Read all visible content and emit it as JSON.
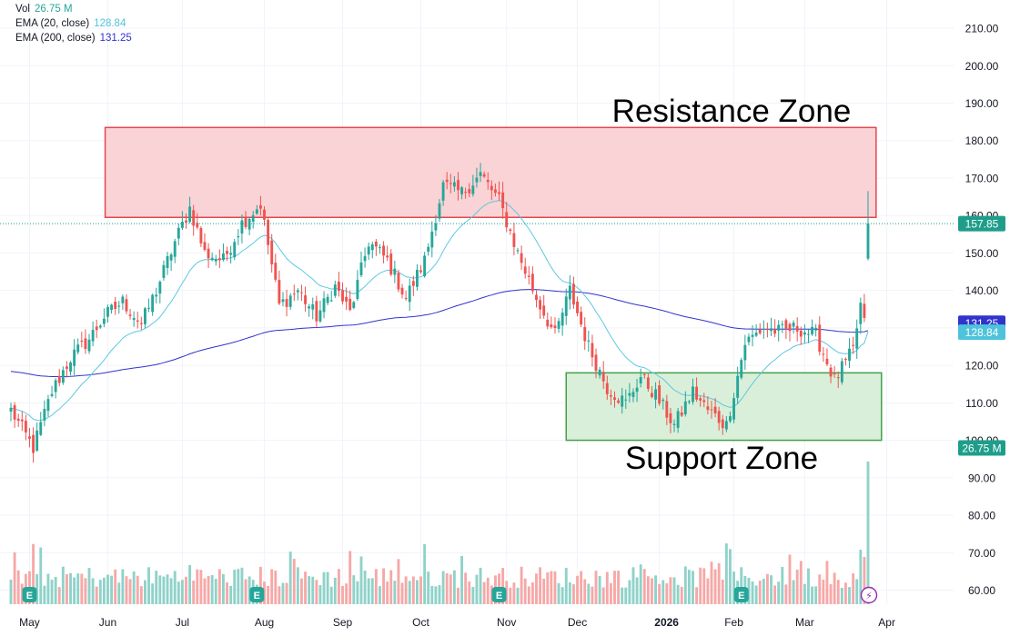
{
  "legend": {
    "vol_label": "Vol",
    "vol_value": "26.75 M",
    "ema20_label": "EMA (20, close)",
    "ema20_value": "128.84",
    "ema200_label": "EMA (200, close)",
    "ema200_value": "131.25"
  },
  "colors": {
    "up": "#26a69a",
    "down": "#ef5350",
    "ema20": "#5ec8e0",
    "ema200": "#3033cc",
    "resistance_fill": "#f9d3d6",
    "resistance_stroke": "#e5484d",
    "support_fill": "#d9efd9",
    "support_stroke": "#43a047",
    "current_price": "#1e9e8a"
  },
  "chart_data": {
    "type": "candlestick",
    "title": "",
    "y_axis": {
      "ticks": [
        210,
        200,
        190,
        180,
        170,
        160,
        150,
        140,
        130,
        120,
        110,
        100,
        90,
        80,
        70,
        60
      ],
      "range": [
        56,
        214
      ],
      "position": "right"
    },
    "x_axis": {
      "ticks": [
        "May",
        "Jun",
        "Jul",
        "Aug",
        "Sep",
        "Oct",
        "Nov",
        "Dec",
        "2026",
        "Feb",
        "Mar",
        "Apr"
      ]
    },
    "anchors": [
      [
        "Apr 24",
        108
      ],
      [
        "May 2",
        98
      ],
      [
        "May 9",
        113
      ],
      [
        "May 16",
        122
      ],
      [
        "May 23",
        127
      ],
      [
        "May 30",
        133
      ],
      [
        "Jun 6",
        137
      ],
      [
        "Jun 13",
        131
      ],
      [
        "Jun 20",
        140
      ],
      [
        "Jun 27",
        153
      ],
      [
        "Jul 3",
        162
      ],
      [
        "Jul 10",
        150
      ],
      [
        "Jul 17",
        148
      ],
      [
        "Jul 24",
        158
      ],
      [
        "Jul 31",
        163
      ],
      [
        "Aug 7",
        136
      ],
      [
        "Aug 14",
        140
      ],
      [
        "Aug 21",
        133
      ],
      [
        "Aug 28",
        141
      ],
      [
        "Sep 4",
        134
      ],
      [
        "Sep 11",
        153
      ],
      [
        "Sep 18",
        148
      ],
      [
        "Sep 25",
        138
      ],
      [
        "Oct 2",
        148
      ],
      [
        "Oct 9",
        168
      ],
      [
        "Oct 16",
        166
      ],
      [
        "Oct 23",
        171
      ],
      [
        "Oct 30",
        164
      ],
      [
        "Nov 6",
        150
      ],
      [
        "Nov 13",
        138
      ],
      [
        "Nov 20",
        128
      ],
      [
        "Nov 27",
        140
      ],
      [
        "Dec 4",
        125
      ],
      [
        "Dec 11",
        114
      ],
      [
        "Dec 18",
        110
      ],
      [
        "Dec 25",
        117
      ],
      [
        "Jan 1",
        112
      ],
      [
        "Jan 8",
        104
      ],
      [
        "Jan 15",
        113
      ],
      [
        "Jan 22",
        108
      ],
      [
        "Jan 29",
        104
      ],
      [
        "Feb 5",
        126
      ],
      [
        "Feb 12",
        130
      ],
      [
        "Feb 19",
        129
      ],
      [
        "Feb 26",
        130
      ],
      [
        "Mar 5",
        128
      ],
      [
        "Mar 12",
        116
      ],
      [
        "Mar 19",
        124
      ],
      [
        "Mar 23",
        136
      ],
      [
        "Mar 24",
        131
      ],
      [
        "Mar 25",
        157.85
      ]
    ],
    "ema20_last": 128.84,
    "ema200_last": 131.25,
    "last_price": 157.85,
    "last_volume": "26.75M",
    "earnings_marker": "E",
    "zones": [
      {
        "name": "Resistance Zone",
        "from": 159.5,
        "to": 183.5,
        "start": "Jun 1",
        "end": "Mar 28"
      },
      {
        "name": "Support Zone",
        "from": 100,
        "to": 118,
        "start": "Nov 25",
        "end": "Mar 30"
      }
    ]
  },
  "axis": {
    "price_ticks": [
      "210.00",
      "200.00",
      "190.00",
      "180.00",
      "170.00",
      "160.00",
      "150.00",
      "140.00",
      "130.00",
      "120.00",
      "110.00",
      "100.00",
      "90.00",
      "80.00",
      "70.00",
      "60.00"
    ],
    "month_labels": [
      "May",
      "Jun",
      "Jul",
      "Aug",
      "Sep",
      "Oct",
      "Nov",
      "Dec",
      "2026",
      "Feb",
      "Mar",
      "Apr"
    ],
    "price_badge": "157.85",
    "ema200_badge": "131.25",
    "ema20_badge": "128.84",
    "volume_badge": "26.75 M"
  },
  "zones": {
    "resistance_label": "Resistance Zone",
    "support_label": "Support Zone"
  },
  "markers": {
    "earnings": "E",
    "lightning": "⚡"
  }
}
